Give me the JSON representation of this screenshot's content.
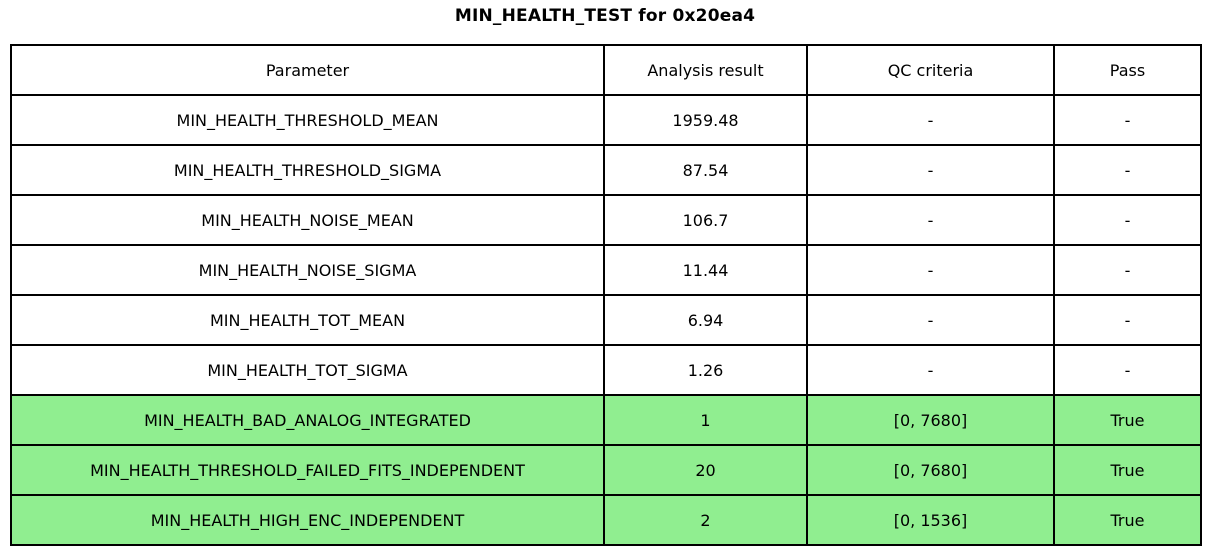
{
  "title": "MIN_HEALTH_TEST for 0x20ea4",
  "table": {
    "headers": [
      "Parameter",
      "Analysis result",
      "QC criteria",
      "Pass"
    ],
    "rows": [
      {
        "parameter": "MIN_HEALTH_THRESHOLD_MEAN",
        "result": "1959.48",
        "qc": "-",
        "pass": "-",
        "highlight": false
      },
      {
        "parameter": "MIN_HEALTH_THRESHOLD_SIGMA",
        "result": "87.54",
        "qc": "-",
        "pass": "-",
        "highlight": false
      },
      {
        "parameter": "MIN_HEALTH_NOISE_MEAN",
        "result": "106.7",
        "qc": "-",
        "pass": "-",
        "highlight": false
      },
      {
        "parameter": "MIN_HEALTH_NOISE_SIGMA",
        "result": "11.44",
        "qc": "-",
        "pass": "-",
        "highlight": false
      },
      {
        "parameter": "MIN_HEALTH_TOT_MEAN",
        "result": "6.94",
        "qc": "-",
        "pass": "-",
        "highlight": false
      },
      {
        "parameter": "MIN_HEALTH_TOT_SIGMA",
        "result": "1.26",
        "qc": "-",
        "pass": "-",
        "highlight": false
      },
      {
        "parameter": "MIN_HEALTH_BAD_ANALOG_INTEGRATED",
        "result": "1",
        "qc": "[0, 7680]",
        "pass": "True",
        "highlight": true
      },
      {
        "parameter": "MIN_HEALTH_THRESHOLD_FAILED_FITS_INDEPENDENT",
        "result": "20",
        "qc": "[0, 7680]",
        "pass": "True",
        "highlight": true
      },
      {
        "parameter": "MIN_HEALTH_HIGH_ENC_INDEPENDENT",
        "result": "2",
        "qc": "[0, 1536]",
        "pass": "True",
        "highlight": true
      }
    ]
  },
  "colors": {
    "highlight_green": "#90ee90",
    "border": "#000000",
    "text": "#000000",
    "background": "#ffffff"
  }
}
